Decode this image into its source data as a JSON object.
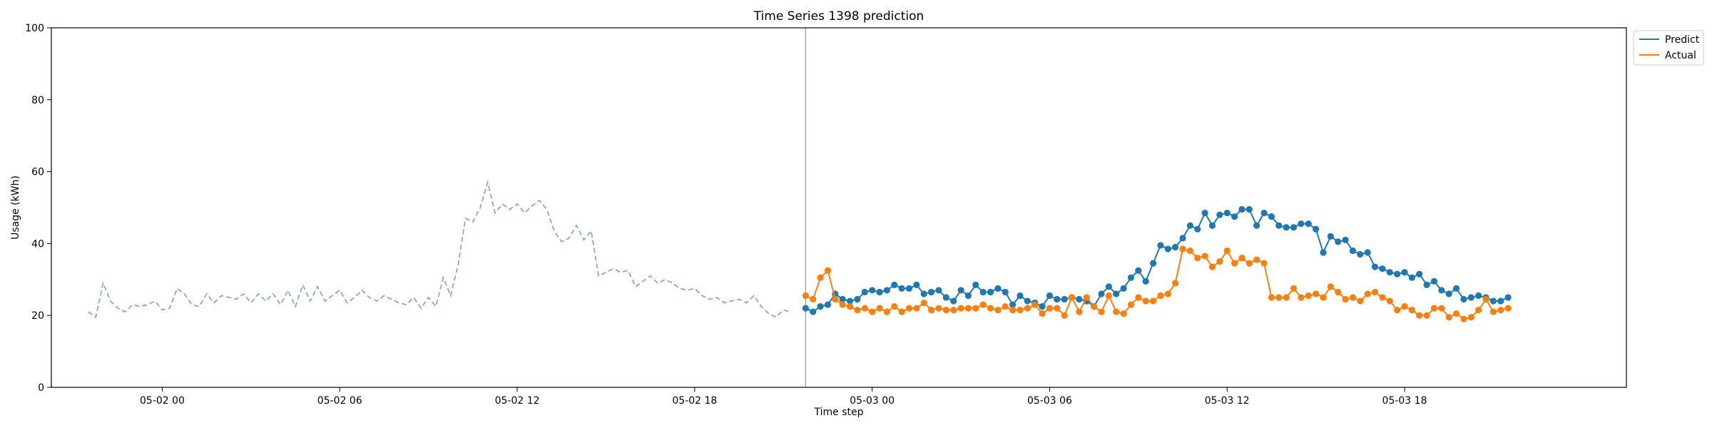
{
  "chart_data": {
    "type": "line",
    "title": "Time Series 1398 prediction",
    "xlabel": "Time step",
    "ylabel": "Usage (kWh)",
    "ylim": [
      0,
      100
    ],
    "yticks": [
      0,
      20,
      40,
      60,
      80,
      100
    ],
    "x_unit": "hours",
    "xlim_hours": [
      -3.75,
      49.5
    ],
    "xticks": [
      {
        "hours": 0,
        "label": "05-02 00"
      },
      {
        "hours": 6,
        "label": "05-02 06"
      },
      {
        "hours": 12,
        "label": "05-02 12"
      },
      {
        "hours": 18,
        "label": "05-02 18"
      },
      {
        "hours": 24,
        "label": "05-03 00"
      },
      {
        "hours": 30,
        "label": "05-03 06"
      },
      {
        "hours": 36,
        "label": "05-03 12"
      },
      {
        "hours": 42,
        "label": "05-03 18"
      }
    ],
    "vline_hours": 21.75,
    "colors": {
      "history": "#8ea6cb",
      "predict": "#1f77b4",
      "actual": "#ff7f0e",
      "vline": "#8ea6cb"
    },
    "legend": {
      "position": "top-right",
      "entries": [
        "Predict",
        "Actual"
      ]
    },
    "series": [
      {
        "key": "history",
        "style": "dashed",
        "x_start_hours": -2.5,
        "step_hours": 0.25,
        "values": [
          21.0,
          19.5,
          29.0,
          24.0,
          22.0,
          21.0,
          23.0,
          22.5,
          23.0,
          24.0,
          21.5,
          22.0,
          27.5,
          26.0,
          23.0,
          22.5,
          26.0,
          23.5,
          25.5,
          25.0,
          24.5,
          26.0,
          23.5,
          26.0,
          24.0,
          26.0,
          23.0,
          27.0,
          22.5,
          28.5,
          24.0,
          28.0,
          24.0,
          25.5,
          27.0,
          23.5,
          25.0,
          27.0,
          25.0,
          24.0,
          25.5,
          24.5,
          23.5,
          23.0,
          25.0,
          22.0,
          25.0,
          22.5,
          30.5,
          25.5,
          34.0,
          47.0,
          46.0,
          50.0,
          57.0,
          48.5,
          51.0,
          49.5,
          51.0,
          48.5,
          50.5,
          52.0,
          49.5,
          43.5,
          40.5,
          41.5,
          45.0,
          41.0,
          43.5,
          31.0,
          32.0,
          33.0,
          32.0,
          32.5,
          28.0,
          29.5,
          31.0,
          29.0,
          30.0,
          29.0,
          27.5,
          27.0,
          27.5,
          25.5,
          24.5,
          25.0,
          23.5,
          24.0,
          24.5,
          23.5,
          25.5,
          22.5,
          20.5,
          19.5,
          21.5,
          21.0
        ]
      },
      {
        "key": "predict",
        "name": "Predict",
        "style": "solid-markers",
        "x_start_hours": 21.75,
        "step_hours": 0.25,
        "values": [
          22.0,
          21.0,
          22.5,
          23.0,
          26.0,
          24.5,
          24.0,
          24.5,
          26.5,
          27.0,
          26.5,
          27.0,
          28.5,
          27.5,
          27.5,
          28.5,
          26.0,
          26.5,
          27.0,
          25.0,
          24.0,
          27.0,
          25.5,
          28.5,
          26.5,
          26.5,
          27.5,
          26.5,
          23.0,
          25.5,
          24.0,
          23.5,
          22.5,
          25.5,
          24.5,
          24.5,
          25.0,
          24.5,
          24.0,
          22.5,
          26.0,
          28.0,
          26.0,
          27.5,
          30.5,
          32.5,
          29.5,
          34.5,
          39.5,
          38.5,
          39.0,
          41.5,
          45.0,
          44.0,
          48.5,
          45.0,
          48.0,
          48.5,
          47.5,
          49.5,
          49.5,
          45.0,
          48.5,
          47.5,
          45.0,
          44.5,
          44.5,
          45.5,
          45.5,
          44.0,
          37.5,
          42.0,
          40.5,
          41.0,
          38.0,
          37.0,
          37.5,
          33.5,
          33.0,
          32.0,
          31.5,
          32.0,
          30.5,
          31.5,
          28.5,
          29.5,
          27.0,
          26.0,
          27.5,
          24.5,
          25.0,
          25.5,
          25.0,
          24.0,
          24.0,
          25.0
        ]
      },
      {
        "key": "actual",
        "name": "Actual",
        "style": "solid-markers",
        "x_start_hours": 21.75,
        "step_hours": 0.25,
        "values": [
          25.5,
          24.5,
          30.5,
          32.5,
          24.5,
          23.0,
          22.5,
          21.5,
          22.0,
          21.0,
          22.0,
          21.0,
          22.5,
          21.0,
          22.0,
          22.0,
          23.5,
          21.5,
          22.0,
          21.5,
          21.5,
          22.0,
          22.0,
          22.0,
          23.0,
          22.0,
          21.5,
          22.5,
          21.5,
          21.5,
          22.0,
          23.0,
          20.5,
          22.0,
          22.0,
          20.0,
          25.0,
          21.0,
          25.0,
          22.5,
          21.0,
          25.5,
          21.0,
          20.5,
          23.0,
          25.0,
          24.0,
          24.0,
          25.5,
          26.0,
          29.0,
          38.5,
          38.0,
          36.0,
          36.5,
          33.5,
          35.0,
          38.0,
          34.5,
          36.0,
          34.5,
          35.5,
          34.5,
          25.0,
          25.0,
          25.0,
          27.5,
          25.0,
          25.5,
          26.0,
          25.0,
          28.0,
          26.5,
          24.5,
          25.0,
          24.0,
          26.0,
          26.5,
          25.0,
          24.0,
          21.5,
          22.5,
          21.5,
          20.0,
          20.0,
          22.0,
          22.0,
          19.5,
          20.5,
          19.0,
          19.5,
          21.5,
          24.5,
          21.0,
          21.5,
          22.0
        ]
      }
    ]
  }
}
